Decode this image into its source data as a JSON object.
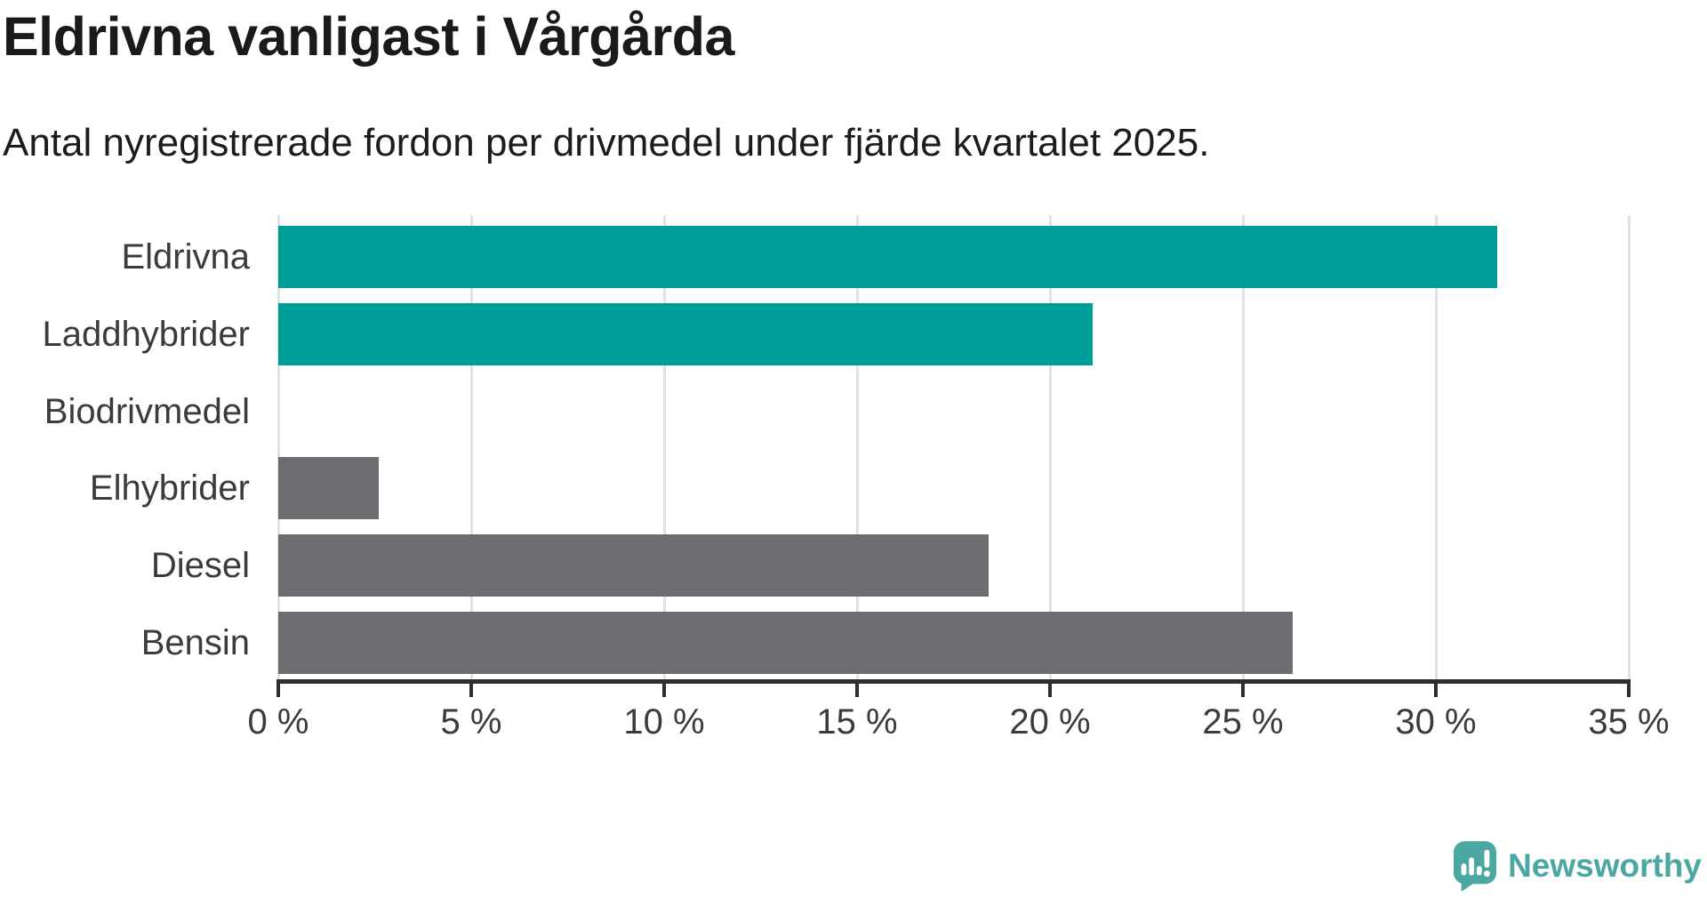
{
  "page": {
    "title": "Eldrivna vanligast i Vårgårda",
    "subtitle": "Antal nyregistrerade fordon per drivmedel under fjärde kvartalet 2025."
  },
  "chart_data": {
    "type": "bar",
    "orientation": "horizontal",
    "title": "Eldrivna vanligast i Vårgårda",
    "subtitle": "Antal nyregistrerade fordon per drivmedel under fjärde kvartalet 2025.",
    "categories": [
      "Eldrivna",
      "Laddhybrider",
      "Biodrivmedel",
      "Elhybrider",
      "Diesel",
      "Bensin"
    ],
    "values": [
      31.6,
      21.1,
      0,
      2.6,
      18.4,
      26.3
    ],
    "unit": "%",
    "bar_colors": [
      "#009E98",
      "#009E98",
      "#6D6D71",
      "#6D6D71",
      "#6D6D71",
      "#6D6D71"
    ],
    "xlim": [
      0,
      35
    ],
    "xticks": [
      0,
      5,
      10,
      15,
      20,
      25,
      30,
      35
    ],
    "xtick_labels": [
      "0 %",
      "5 %",
      "10 %",
      "15 %",
      "20 %",
      "25 %",
      "30 %",
      "35 %"
    ],
    "grid": true,
    "legend": false
  },
  "branding": {
    "wordmark": "Newsworthy",
    "icon": "newsworthy-speech-bubble-chart-icon",
    "logo_color": "#4BA7A1"
  },
  "colors": {
    "accent_teal": "#009E98",
    "neutral_gray": "#6D6D71",
    "axis_line": "#2E2E2E",
    "gridline": "#E1E1E1",
    "title_text": "#1A1A1A",
    "label_text": "#3B3B3B"
  }
}
